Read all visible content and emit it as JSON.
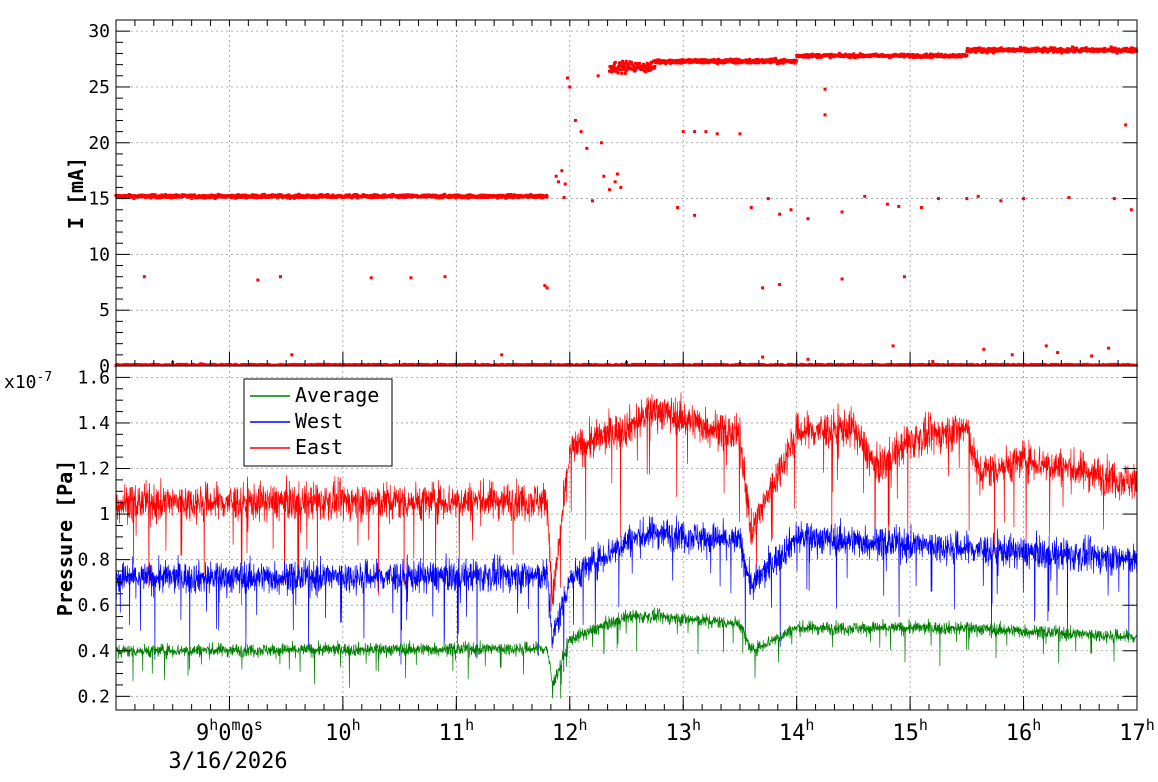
{
  "chart_data": [
    {
      "type": "scatter",
      "ylabel": "I [mA]",
      "ylim": [
        0,
        31
      ],
      "y_ticks": [
        "0",
        "5",
        "10",
        "15",
        "20",
        "25",
        "30"
      ],
      "grid": true,
      "point_color": "#ff0000",
      "segments": [
        {
          "x_start": 8.0,
          "x_end": 11.8,
          "level": 15.2,
          "spread": 0.25
        },
        {
          "x_start": 12.35,
          "x_end": 12.75,
          "level": 26.8,
          "spread": 0.8
        },
        {
          "x_start": 12.75,
          "x_end": 14.0,
          "level": 27.3,
          "spread": 0.35
        },
        {
          "x_start": 14.0,
          "x_end": 15.5,
          "level": 27.8,
          "spread": 0.25
        },
        {
          "x_start": 15.5,
          "x_end": 17.0,
          "level": 28.3,
          "spread": 0.35
        }
      ],
      "points": [
        [
          8.25,
          8.0
        ],
        [
          8.5,
          0.3
        ],
        [
          8.75,
          0.2
        ],
        [
          9.25,
          7.7
        ],
        [
          9.45,
          8.0
        ],
        [
          9.55,
          1.0
        ],
        [
          10.25,
          7.9
        ],
        [
          10.6,
          7.9
        ],
        [
          10.9,
          8.0
        ],
        [
          11.4,
          1.0
        ],
        [
          11.78,
          7.2
        ],
        [
          11.8,
          7.0
        ],
        [
          11.88,
          17.0
        ],
        [
          11.9,
          16.5
        ],
        [
          11.93,
          17.5
        ],
        [
          11.95,
          15.1
        ],
        [
          11.96,
          16.3
        ],
        [
          11.98,
          25.8
        ],
        [
          12.0,
          25.0
        ],
        [
          12.05,
          22.0
        ],
        [
          12.1,
          21.0
        ],
        [
          12.15,
          19.5
        ],
        [
          12.2,
          14.8
        ],
        [
          12.3,
          17.0
        ],
        [
          12.35,
          15.8
        ],
        [
          12.4,
          16.5
        ],
        [
          12.42,
          17.2
        ],
        [
          12.45,
          16.0
        ],
        [
          12.28,
          20.0
        ],
        [
          12.25,
          26.0
        ],
        [
          12.5,
          26.5
        ],
        [
          13.0,
          21.0
        ],
        [
          13.1,
          21.0
        ],
        [
          13.2,
          21.0
        ],
        [
          13.3,
          20.8
        ],
        [
          13.5,
          20.8
        ],
        [
          12.95,
          14.2
        ],
        [
          13.1,
          13.5
        ],
        [
          13.6,
          14.2
        ],
        [
          13.75,
          15.0
        ],
        [
          13.85,
          13.6
        ],
        [
          13.95,
          14.0
        ],
        [
          14.1,
          13.2
        ],
        [
          14.4,
          13.8
        ],
        [
          14.6,
          15.2
        ],
        [
          14.8,
          14.5
        ],
        [
          14.9,
          14.3
        ],
        [
          15.1,
          14.2
        ],
        [
          15.25,
          15.0
        ],
        [
          15.5,
          15.0
        ],
        [
          15.6,
          15.2
        ],
        [
          15.8,
          14.8
        ],
        [
          16.0,
          15.0
        ],
        [
          16.4,
          15.1
        ],
        [
          16.8,
          15.0
        ],
        [
          16.95,
          14.0
        ],
        [
          16.9,
          21.6
        ],
        [
          14.25,
          22.5
        ],
        [
          14.25,
          24.8
        ],
        [
          13.7,
          7.0
        ],
        [
          13.85,
          7.3
        ],
        [
          14.4,
          7.8
        ],
        [
          14.95,
          8.0
        ],
        [
          13.7,
          0.8
        ],
        [
          14.1,
          0.6
        ],
        [
          14.85,
          1.8
        ],
        [
          15.65,
          1.5
        ],
        [
          15.9,
          1.0
        ],
        [
          16.2,
          1.8
        ],
        [
          16.3,
          1.2
        ],
        [
          16.6,
          0.9
        ],
        [
          16.75,
          1.6
        ],
        [
          13.5,
          0.2
        ],
        [
          12.5,
          0.3
        ],
        [
          15.2,
          0.4
        ]
      ]
    },
    {
      "type": "line",
      "ylabel": "Pressure [Pa]",
      "y_multiplier": "x10",
      "y_multiplier_exp": "-7",
      "ylim": [
        0.14,
        1.65
      ],
      "y_ticks": [
        "0.2",
        "0.4",
        "0.6",
        "0.8",
        "1",
        "1.2",
        "1.4",
        "1.6"
      ],
      "grid": true,
      "legend": {
        "position": "top-left",
        "entries": [
          "Average",
          "West",
          "East"
        ]
      },
      "series": [
        {
          "name": "Average",
          "color": "#008000",
          "noise": 0.05,
          "profile": [
            [
              8.0,
              0.4
            ],
            [
              11.8,
              0.41
            ],
            [
              11.85,
              0.25
            ],
            [
              12.0,
              0.45
            ],
            [
              12.5,
              0.55
            ],
            [
              12.75,
              0.55
            ],
            [
              13.5,
              0.52
            ],
            [
              13.6,
              0.4
            ],
            [
              14.0,
              0.5
            ],
            [
              15.5,
              0.5
            ],
            [
              17.0,
              0.46
            ]
          ]
        },
        {
          "name": "West",
          "color": "#0000ff",
          "noise": 0.12,
          "profile": [
            [
              8.0,
              0.72
            ],
            [
              11.8,
              0.73
            ],
            [
              11.85,
              0.45
            ],
            [
              12.0,
              0.72
            ],
            [
              12.5,
              0.88
            ],
            [
              12.75,
              0.92
            ],
            [
              13.5,
              0.88
            ],
            [
              13.6,
              0.68
            ],
            [
              14.0,
              0.9
            ],
            [
              15.5,
              0.85
            ],
            [
              17.0,
              0.8
            ]
          ]
        },
        {
          "name": "East",
          "color": "#ff0000",
          "noise": 0.14,
          "profile": [
            [
              8.0,
              1.05
            ],
            [
              11.8,
              1.06
            ],
            [
              11.85,
              0.62
            ],
            [
              12.0,
              1.28
            ],
            [
              12.5,
              1.38
            ],
            [
              12.75,
              1.46
            ],
            [
              13.5,
              1.34
            ],
            [
              13.6,
              0.92
            ],
            [
              14.0,
              1.36
            ],
            [
              14.5,
              1.38
            ],
            [
              14.7,
              1.2
            ],
            [
              15.0,
              1.32
            ],
            [
              15.5,
              1.38
            ],
            [
              15.6,
              1.18
            ],
            [
              16.0,
              1.24
            ],
            [
              17.0,
              1.14
            ]
          ]
        }
      ]
    }
  ],
  "time_axis": {
    "range_hours": [
      8.0,
      17.0
    ],
    "ticks": [
      {
        "hour": 9,
        "main": "9",
        "mid": "0",
        "tail": "0",
        "h": "h",
        "m": "m",
        "s": "s"
      },
      {
        "hour": 10,
        "main": "10",
        "h": "h"
      },
      {
        "hour": 11,
        "main": "11",
        "h": "h"
      },
      {
        "hour": 12,
        "main": "12",
        "h": "h"
      },
      {
        "hour": 13,
        "main": "13",
        "h": "h"
      },
      {
        "hour": 14,
        "main": "14",
        "h": "h"
      },
      {
        "hour": 15,
        "main": "15",
        "h": "h"
      },
      {
        "hour": 16,
        "main": "16",
        "h": "h"
      },
      {
        "hour": 17,
        "main": "17",
        "h": "h"
      }
    ],
    "date": "3/16/2026"
  }
}
